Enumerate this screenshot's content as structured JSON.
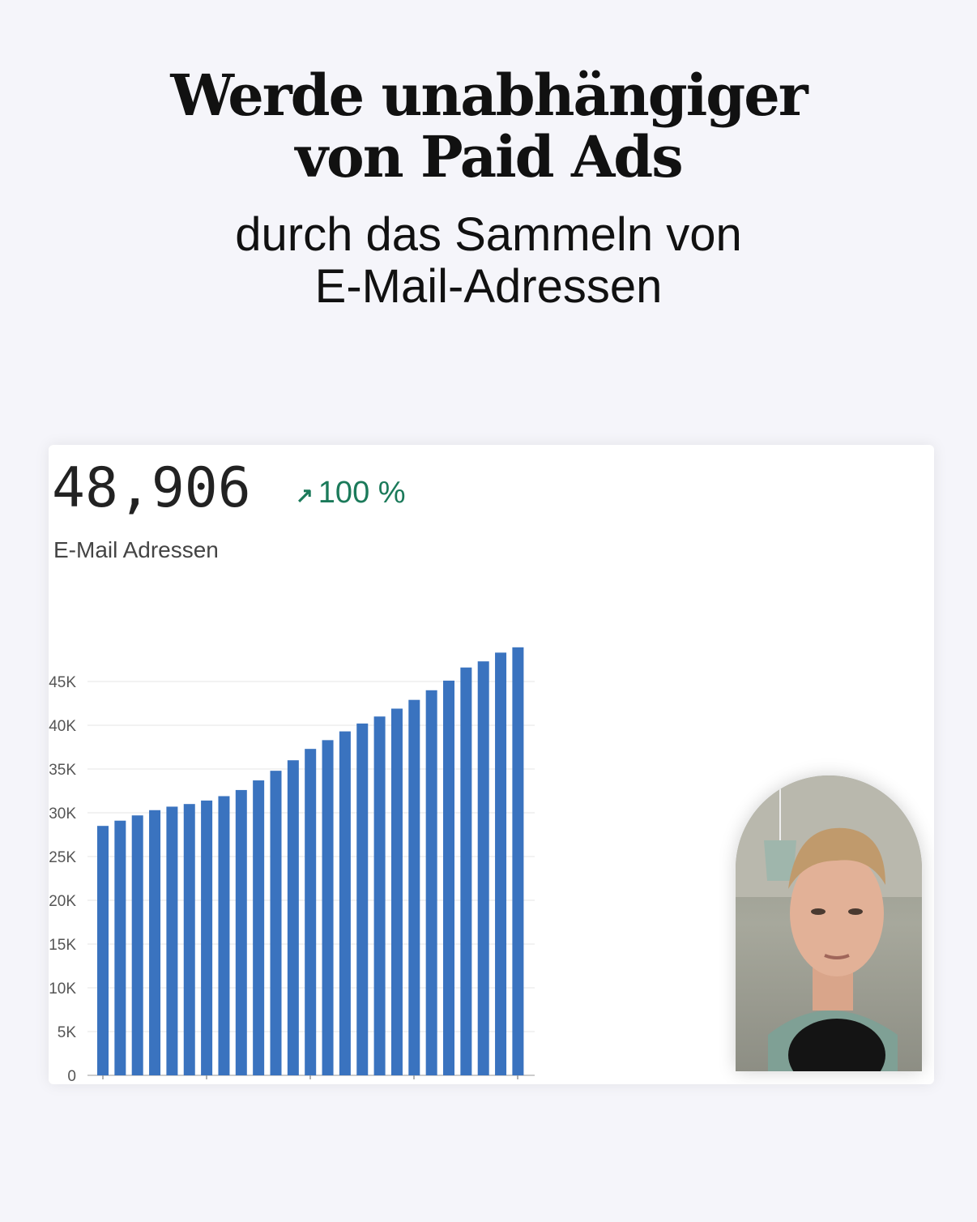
{
  "headline": {
    "line1": "Werde unabhängiger",
    "line2": "von Paid Ads"
  },
  "subheadline": {
    "line1": "durch das Sammeln von",
    "line2": "E-Mail-Adressen"
  },
  "metric": {
    "value": "48,906",
    "change": "100 %",
    "change_icon": "arrow-up-right-icon",
    "label": "E-Mail Adressen",
    "accent_color": "#1b7a5a"
  },
  "chart_data": {
    "type": "bar",
    "title": "",
    "xlabel": "",
    "ylabel": "E-Mail Adressen",
    "ylim": [
      0,
      50000
    ],
    "yticks": [
      "0",
      "5K",
      "10K",
      "15K",
      "20K",
      "25K",
      "30K",
      "35K",
      "40K",
      "45K"
    ],
    "ytick_values": [
      0,
      5000,
      10000,
      15000,
      20000,
      25000,
      30000,
      35000,
      40000,
      45000
    ],
    "grid": true,
    "bar_color": "#3a73bf",
    "values": [
      28500,
      29100,
      29700,
      30300,
      30700,
      31000,
      31400,
      31900,
      32600,
      33700,
      34800,
      36000,
      37300,
      38300,
      39300,
      40200,
      41000,
      41900,
      42900,
      44000,
      45100,
      46600,
      47300,
      48300,
      48906
    ]
  },
  "presenter_photo": {
    "icon": "presenter-photo"
  }
}
